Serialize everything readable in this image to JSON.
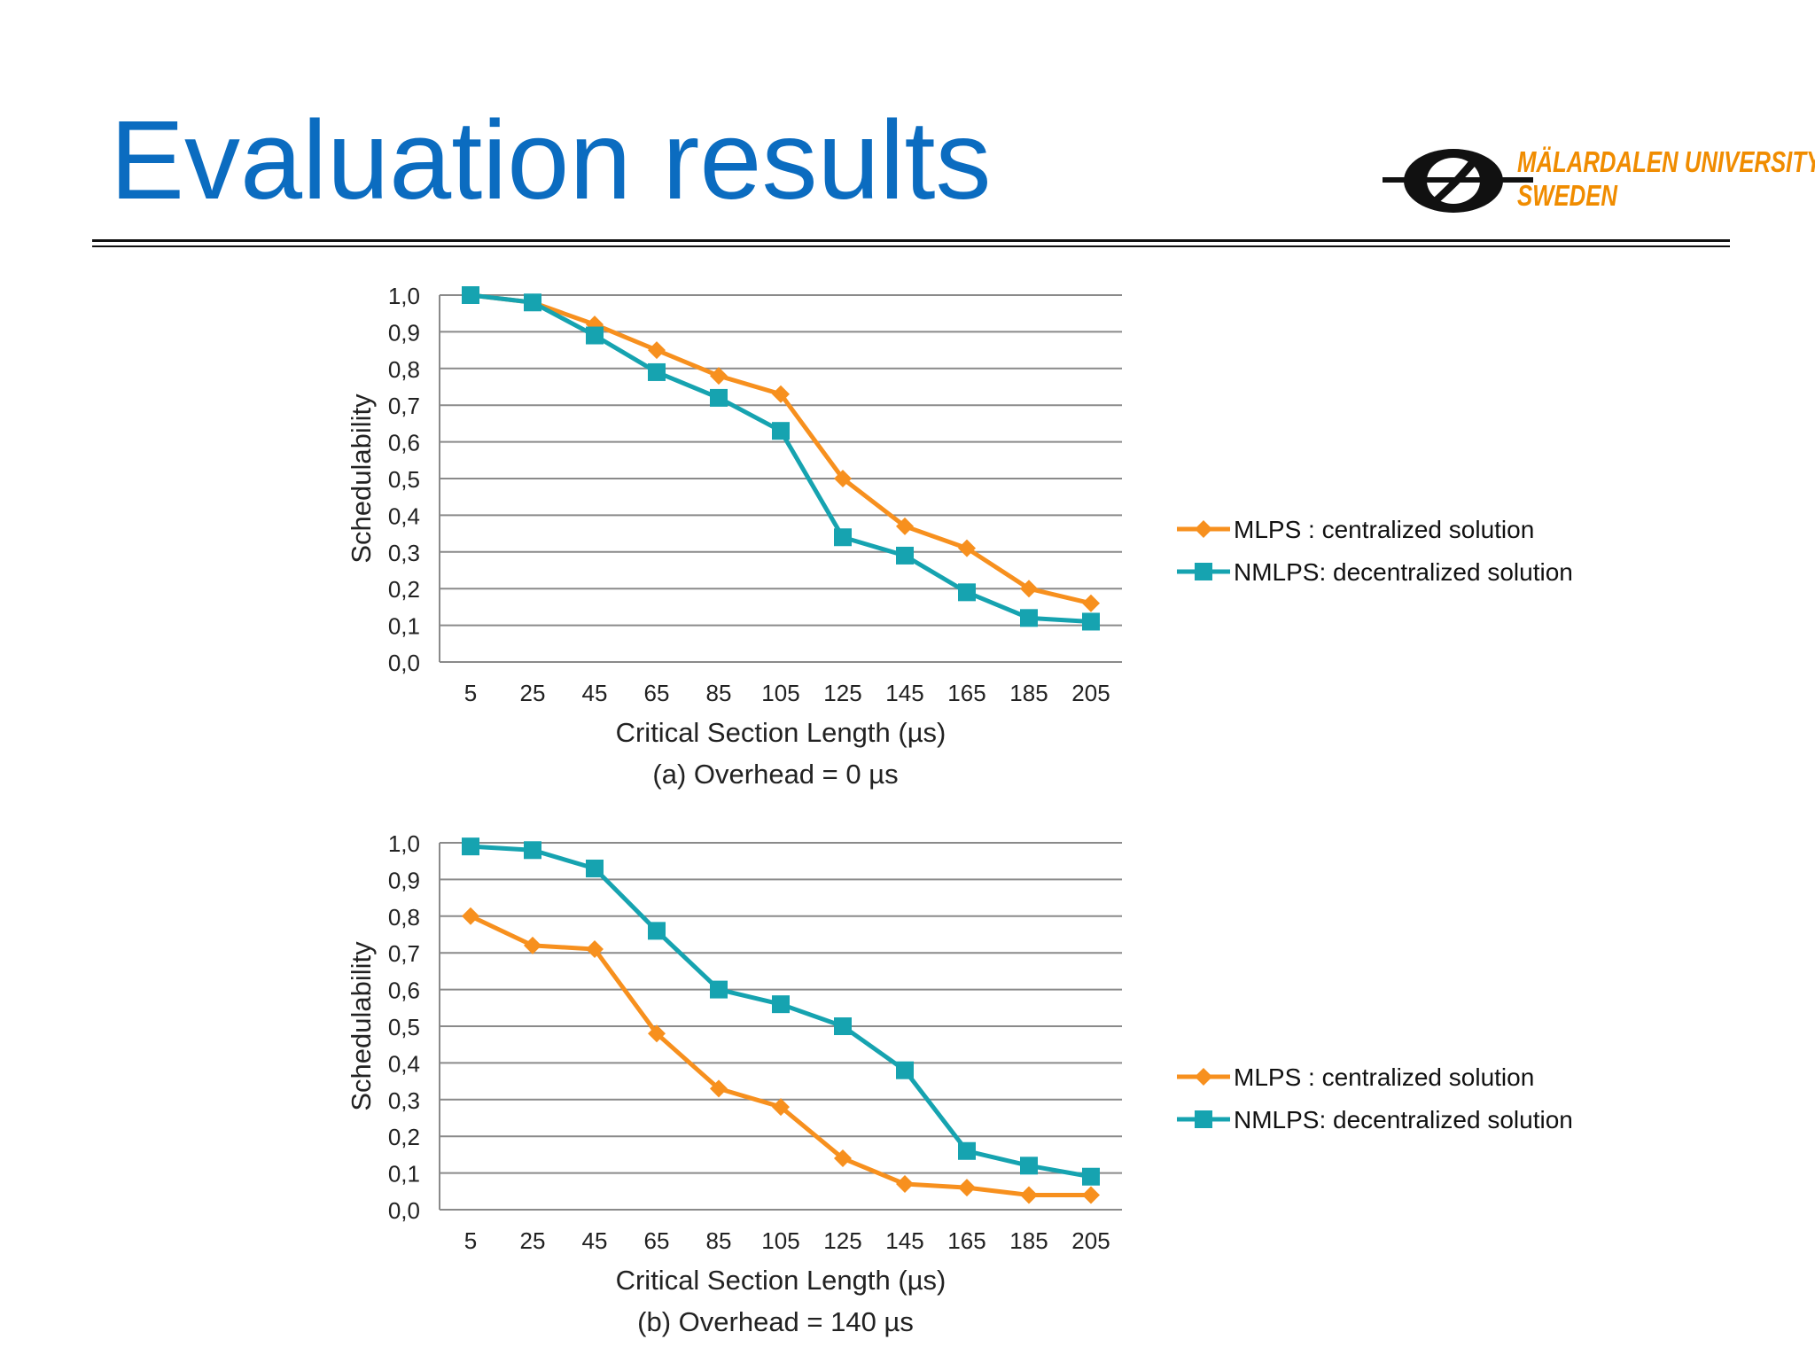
{
  "slide": {
    "title": "Evaluation results",
    "logo_line1": "MÄLARDALEN UNIVERSITY",
    "logo_line2": "SWEDEN"
  },
  "colors": {
    "title": "#0b6cc0",
    "mlps": "#f7901e",
    "nmlps": "#16a3b0",
    "logo": "#f08c00"
  },
  "chart_data": [
    {
      "type": "line",
      "caption": "(a) Overhead = 0 µs",
      "xlabel": "Critical Section Length (µs)",
      "ylabel": "Schedulability",
      "categories": [
        "5",
        "25",
        "45",
        "65",
        "85",
        "105",
        "125",
        "145",
        "165",
        "185",
        "205"
      ],
      "yticks": [
        "0,0",
        "0,1",
        "0,2",
        "0,3",
        "0,4",
        "0,5",
        "0,6",
        "0,7",
        "0,8",
        "0,9",
        "1,0"
      ],
      "ylim": [
        0,
        1
      ],
      "grid": true,
      "legend_position": "right",
      "series": [
        {
          "name": "MLPS : centralized solution",
          "marker": "diamond",
          "color": "#f7901e",
          "values": [
            1.0,
            0.98,
            0.92,
            0.85,
            0.78,
            0.73,
            0.5,
            0.37,
            0.31,
            0.2,
            0.16
          ]
        },
        {
          "name": "NMLPS: decentralized solution",
          "marker": "square",
          "color": "#16a3b0",
          "values": [
            1.0,
            0.98,
            0.89,
            0.79,
            0.72,
            0.63,
            0.34,
            0.29,
            0.19,
            0.12,
            0.11
          ]
        }
      ]
    },
    {
      "type": "line",
      "caption": "(b) Overhead = 140 µs",
      "xlabel": "Critical Section Length (µs)",
      "ylabel": "Schedulability",
      "categories": [
        "5",
        "25",
        "45",
        "65",
        "85",
        "105",
        "125",
        "145",
        "165",
        "185",
        "205"
      ],
      "yticks": [
        "0,0",
        "0,1",
        "0,2",
        "0,3",
        "0,4",
        "0,5",
        "0,6",
        "0,7",
        "0,8",
        "0,9",
        "1,0"
      ],
      "ylim": [
        0,
        1
      ],
      "grid": true,
      "legend_position": "right",
      "series": [
        {
          "name": "MLPS : centralized solution",
          "marker": "diamond",
          "color": "#f7901e",
          "values": [
            0.8,
            0.72,
            0.71,
            0.48,
            0.33,
            0.28,
            0.14,
            0.07,
            0.06,
            0.04,
            0.04
          ]
        },
        {
          "name": "NMLPS: decentralized solution",
          "marker": "square",
          "color": "#16a3b0",
          "values": [
            0.99,
            0.98,
            0.93,
            0.76,
            0.6,
            0.56,
            0.5,
            0.38,
            0.16,
            0.12,
            0.09
          ]
        }
      ]
    }
  ]
}
